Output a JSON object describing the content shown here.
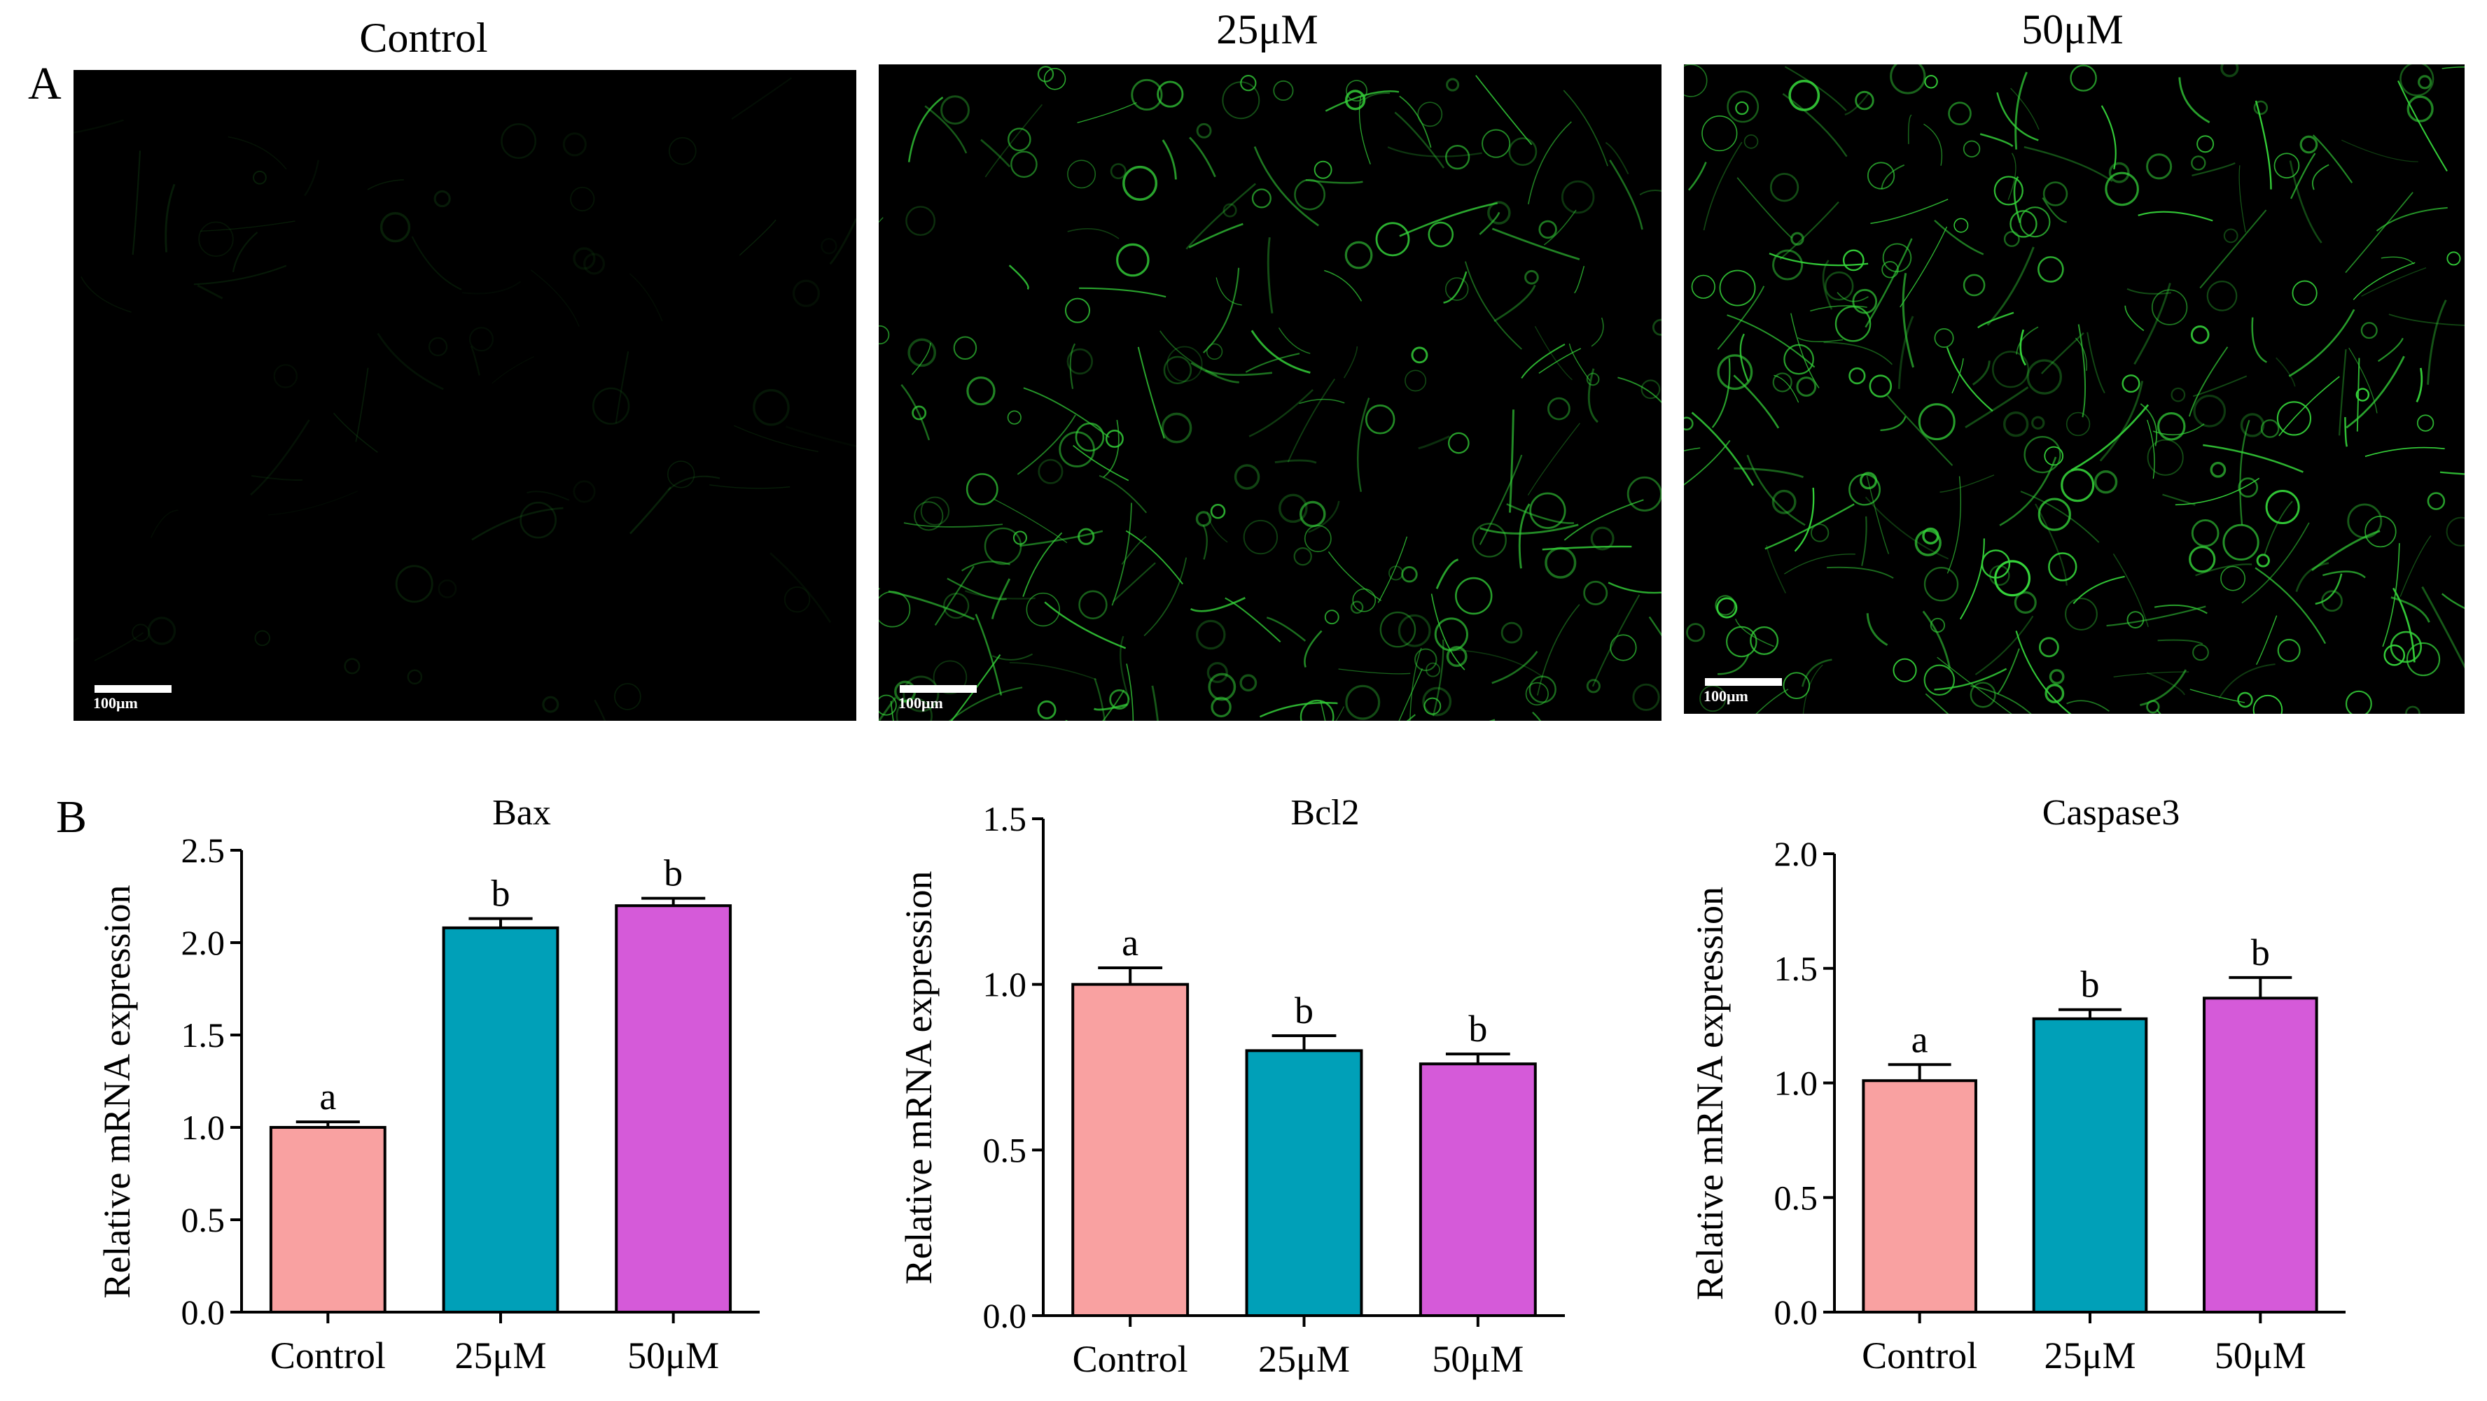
{
  "panels": {
    "a_label": "A",
    "b_label": "B"
  },
  "micrographs": [
    {
      "title": "Control",
      "scale_label": "100μm",
      "intensity": 0.15
    },
    {
      "title": "25μM",
      "scale_label": "100μm",
      "intensity": 0.85
    },
    {
      "title": "50μM",
      "scale_label": "100μm",
      "intensity": 1.0
    }
  ],
  "colors": {
    "control": "#f9a1a1",
    "dose_25": "#00a0b8",
    "dose_50": "#d55ad9",
    "fluorescence": "#35d43a"
  },
  "chart_data": [
    {
      "type": "bar",
      "title": "Bax",
      "ylabel": "Relative mRNA expression",
      "categories": [
        "Control",
        "25μM",
        "50μM"
      ],
      "values": [
        1.0,
        2.08,
        2.2
      ],
      "errors": [
        0.03,
        0.05,
        0.04
      ],
      "letters": [
        "a",
        "b",
        "b"
      ],
      "ylim": [
        0,
        2.5
      ],
      "yticks": [
        "0.0",
        "0.5",
        "1.0",
        "1.5",
        "2.0",
        "2.5"
      ]
    },
    {
      "type": "bar",
      "title": "Bcl2",
      "ylabel": "Relative mRNA expression",
      "categories": [
        "Control",
        "25μM",
        "50μM"
      ],
      "values": [
        1.0,
        0.8,
        0.76
      ],
      "errors": [
        0.05,
        0.045,
        0.03
      ],
      "letters": [
        "a",
        "b",
        "b"
      ],
      "ylim": [
        0,
        1.5
      ],
      "yticks": [
        "0.0",
        "0.5",
        "1.0",
        "1.5"
      ]
    },
    {
      "type": "bar",
      "title": "Caspase3",
      "ylabel": "Relative mRNA expression",
      "categories": [
        "Control",
        "25μM",
        "50μM"
      ],
      "values": [
        1.01,
        1.28,
        1.37
      ],
      "errors": [
        0.07,
        0.04,
        0.09
      ],
      "letters": [
        "a",
        "b",
        "b"
      ],
      "ylim": [
        0,
        2.0
      ],
      "yticks": [
        "0.0",
        "0.5",
        "1.0",
        "1.5",
        "2.0"
      ]
    }
  ]
}
